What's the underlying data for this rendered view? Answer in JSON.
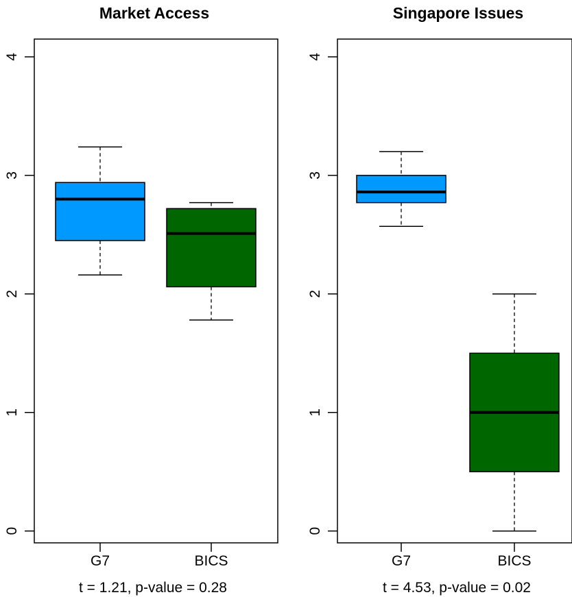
{
  "chart_data": [
    {
      "type": "box",
      "title": "Market Access",
      "xlabel": "",
      "ylabel": "",
      "ylim": [
        -0.1,
        4.15
      ],
      "yticks": [
        0,
        1,
        2,
        3,
        4
      ],
      "categories": [
        "G7",
        "BICS"
      ],
      "boxes": [
        {
          "category": "G7",
          "whisker_low": 2.16,
          "q1": 2.45,
          "median": 2.8,
          "q3": 2.94,
          "whisker_high": 3.24,
          "color": "#0099ff"
        },
        {
          "category": "BICS",
          "whisker_low": 1.78,
          "q1": 2.06,
          "median": 2.51,
          "q3": 2.72,
          "whisker_high": 2.77,
          "color": "#006600"
        }
      ],
      "annotation": "t = 1.21, p-value = 0.28"
    },
    {
      "type": "box",
      "title": "Singapore Issues",
      "xlabel": "",
      "ylabel": "",
      "ylim": [
        -0.1,
        4.15
      ],
      "yticks": [
        0,
        1,
        2,
        3,
        4
      ],
      "categories": [
        "G7",
        "BICS"
      ],
      "boxes": [
        {
          "category": "G7",
          "whisker_low": 2.57,
          "q1": 2.77,
          "median": 2.86,
          "q3": 3.0,
          "whisker_high": 3.2,
          "color": "#0099ff"
        },
        {
          "category": "BICS",
          "whisker_low": 0.0,
          "q1": 0.5,
          "median": 1.0,
          "q3": 1.5,
          "whisker_high": 2.0,
          "color": "#006600"
        }
      ],
      "annotation": "t = 4.53, p-value = 0.02"
    }
  ]
}
